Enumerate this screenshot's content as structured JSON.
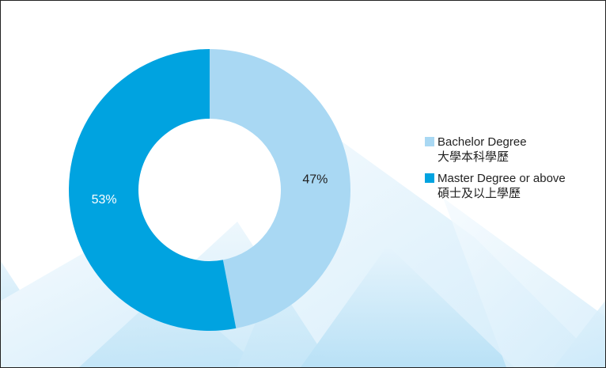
{
  "chart_data": {
    "type": "donut",
    "categories": [
      "Bachelor Degree",
      "Master Degree or above"
    ],
    "category_translations": [
      "大學本科學歷",
      "碩士及以上學歷"
    ],
    "values": [
      47,
      53
    ],
    "value_labels": [
      "47%",
      "53%"
    ],
    "colors": [
      "#a9d8f3",
      "#00a3e0"
    ],
    "legend": "right"
  }
}
